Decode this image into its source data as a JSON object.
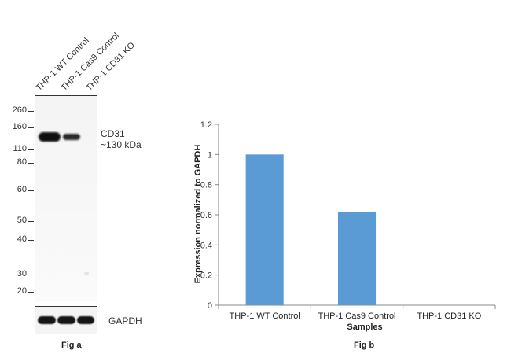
{
  "fig_a": {
    "lanes": [
      "THP-1 WT Control",
      "THP-1 Cas9 Control",
      "THP-1 CD31 KO"
    ],
    "mw_markers": [
      "260",
      "160",
      "110",
      "80",
      "60",
      "50",
      "40",
      "30",
      "20"
    ],
    "band_label": "CD31",
    "band_size": "~130 kDa",
    "loading_label": "GAPDH",
    "caption": "Fig a"
  },
  "fig_b": {
    "caption": "Fig b"
  },
  "chart_data": {
    "type": "bar",
    "categories": [
      "THP-1 WT Control",
      "THP-1 Cas9 Control",
      "THP-1 CD31 KO"
    ],
    "values": [
      1.0,
      0.62,
      0.0
    ],
    "title": "",
    "xlabel": "Samples",
    "ylabel": "Expression normalized to GAPDH",
    "ylim": [
      0,
      1.2
    ],
    "yticks": [
      "0",
      "0.2",
      "0.4",
      "0.6",
      "0.8",
      "1",
      "1.2"
    ],
    "bar_color": "#5b9bd5",
    "grid": false,
    "legend": "none"
  }
}
